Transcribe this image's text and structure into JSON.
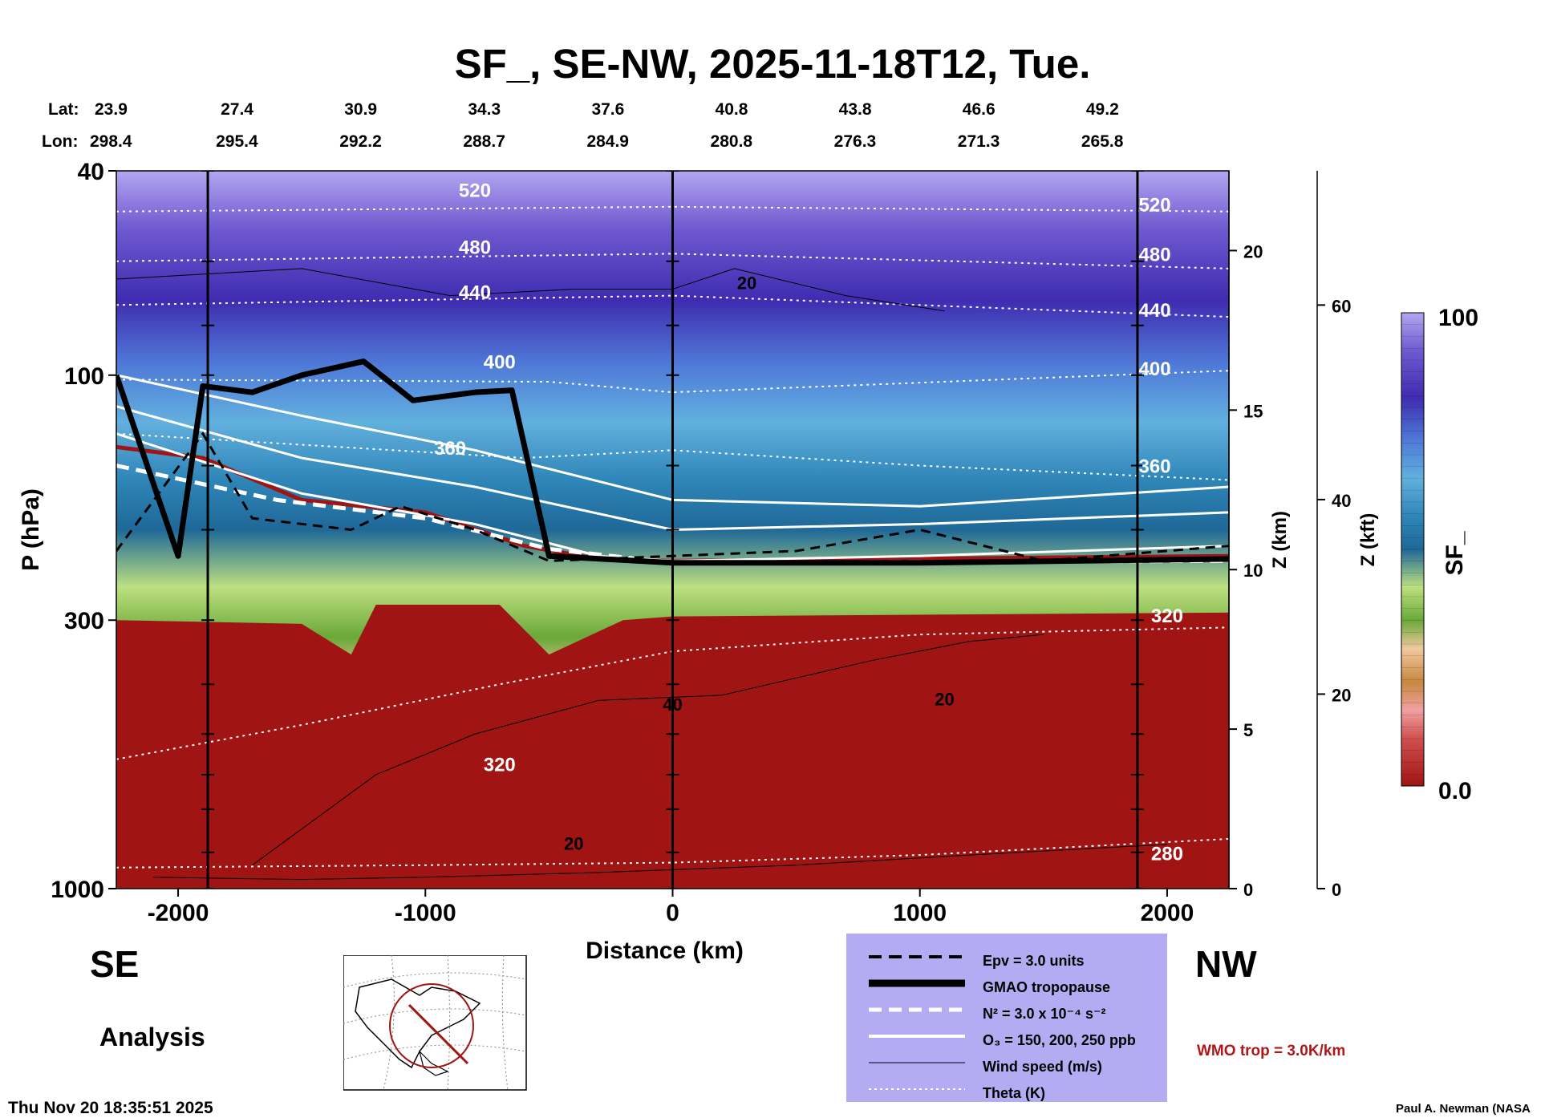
{
  "chart_data": {
    "type": "heatmap",
    "title": "SF_, SE-NW, 2025-11-18T12, Tue.",
    "xlabel": "Distance (km)",
    "ylabel": "P (hPa)",
    "ylabel_right_km": "Z (km)",
    "ylabel_right_kft": "Z (kft)",
    "xlim": [
      -2250,
      2250
    ],
    "ylim": [
      1000,
      40
    ],
    "y_scale": "log",
    "x_ticks": [
      -2000,
      -1000,
      0,
      1000,
      2000
    ],
    "y_ticks": [
      40,
      100,
      300,
      1000
    ],
    "z_km_ticks": [
      0,
      5,
      10,
      15,
      20
    ],
    "z_kft_ticks": [
      0,
      20,
      40,
      60
    ],
    "lat_label": "Lat:",
    "lon_label": "Lon:",
    "lat": [
      "23.9",
      "27.4",
      "30.9",
      "34.3",
      "37.6",
      "40.8",
      "43.8",
      "46.6",
      "49.2"
    ],
    "lon": [
      "298.4",
      "295.4",
      "292.2",
      "288.7",
      "284.9",
      "280.8",
      "276.3",
      "271.3",
      "265.8"
    ],
    "colorbar": {
      "label": "SF_",
      "min": "0.0",
      "max": "100"
    },
    "theta_labels": [
      "520",
      "480",
      "440",
      "400",
      "360",
      "320",
      "280"
    ],
    "wind_labels": [
      "20",
      "40"
    ],
    "tropopause_pressure_hpa": [
      {
        "x": -2250,
        "p": 100
      },
      {
        "x": -2000,
        "p": 225
      },
      {
        "x": -1900,
        "p": 105
      },
      {
        "x": -1700,
        "p": 108
      },
      {
        "x": -1500,
        "p": 100
      },
      {
        "x": -1250,
        "p": 94
      },
      {
        "x": -1050,
        "p": 112
      },
      {
        "x": -800,
        "p": 108
      },
      {
        "x": -650,
        "p": 107
      },
      {
        "x": -500,
        "p": 225
      },
      {
        "x": 0,
        "p": 232
      },
      {
        "x": 1000,
        "p": 232
      },
      {
        "x": 2250,
        "p": 228
      }
    ],
    "wmo_tropopause_pressure_hpa": [
      {
        "x": -2250,
        "p": 138
      },
      {
        "x": -1900,
        "p": 145
      },
      {
        "x": -1500,
        "p": 175
      },
      {
        "x": -1000,
        "p": 185
      },
      {
        "x": -600,
        "p": 215
      },
      {
        "x": -300,
        "p": 228
      },
      {
        "x": 0,
        "p": 230
      },
      {
        "x": 2250,
        "p": 225
      }
    ],
    "legend": [
      "Epv = 3.0 units",
      "GMAO tropopause",
      "N² = 3.0 x 10⁻⁴ s⁻²",
      "O₃ = 150, 200, 250 ppb",
      "Wind speed (m/s)",
      "Theta (K)"
    ],
    "wmo_label": "WMO trop = 3.0K/km",
    "colors": {
      "stratosphere_top": "#b3a6f0",
      "dark_purple": "#4a32b8",
      "blue": "#3b8fc0",
      "green": "#86bd44",
      "tan": "#d09a66",
      "red": "#a01414",
      "legend_bg": "#b4acf2"
    }
  },
  "labels": {
    "se": "SE",
    "nw": "NW",
    "analysis": "Analysis",
    "timestamp": "Thu Nov 20 18:35:51 2025",
    "credit": "Paul A. Newman (NASA"
  }
}
